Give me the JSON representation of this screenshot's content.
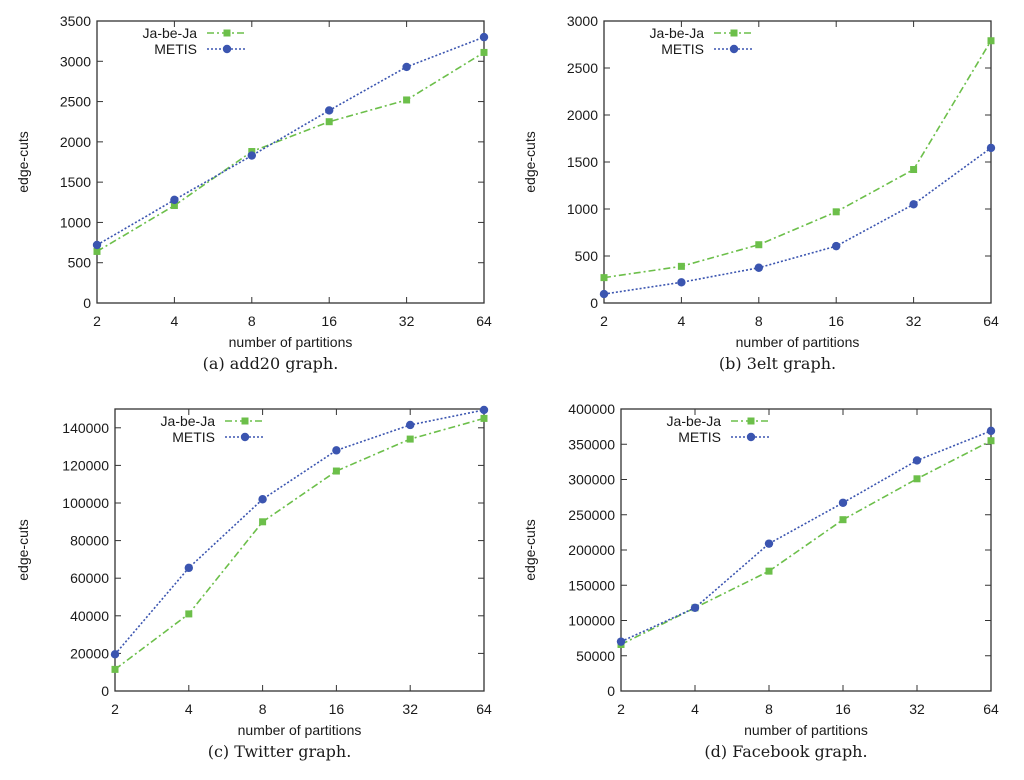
{
  "figure": {
    "colors": {
      "jabeja": "#6cbf4a",
      "metis": "#3b55b0",
      "axis": "#333333"
    }
  },
  "chart_data": [
    {
      "type": "line",
      "caption": "(a)  add20 graph.",
      "xlabel": "number of partitions",
      "ylabel": "edge-cuts",
      "x": [
        "2",
        "4",
        "8",
        "16",
        "32",
        "64"
      ],
      "ylim": [
        0,
        3500
      ],
      "yticks": [
        0,
        500,
        1000,
        1500,
        2000,
        2500,
        3000,
        3500
      ],
      "legend": "top-left",
      "grid": false,
      "series": [
        {
          "name": "Ja-be-Ja",
          "marker": "square",
          "values": [
            640,
            1210,
            1880,
            2250,
            2520,
            3110
          ]
        },
        {
          "name": "METIS",
          "marker": "circle",
          "values": [
            720,
            1280,
            1830,
            2390,
            2930,
            3300
          ]
        }
      ]
    },
    {
      "type": "line",
      "caption": "(b)  3elt graph.",
      "xlabel": "number of partitions",
      "ylabel": "edge-cuts",
      "x": [
        "2",
        "4",
        "8",
        "16",
        "32",
        "64"
      ],
      "ylim": [
        0,
        3000
      ],
      "yticks": [
        0,
        500,
        1000,
        1500,
        2000,
        2500,
        3000
      ],
      "legend": "top-left",
      "grid": false,
      "series": [
        {
          "name": "Ja-be-Ja",
          "marker": "square",
          "values": [
            270,
            390,
            620,
            970,
            1420,
            2790
          ]
        },
        {
          "name": "METIS",
          "marker": "circle",
          "values": [
            95,
            220,
            375,
            605,
            1050,
            1650
          ]
        }
      ]
    },
    {
      "type": "line",
      "caption": "(c)  Twitter graph.",
      "xlabel": "number of partitions",
      "ylabel": "edge-cuts",
      "x": [
        "2",
        "4",
        "8",
        "16",
        "32",
        "64"
      ],
      "ylim": [
        0,
        150000
      ],
      "yticks": [
        0,
        20000,
        40000,
        60000,
        80000,
        100000,
        120000,
        140000
      ],
      "legend": "top-left",
      "grid": false,
      "series": [
        {
          "name": "Ja-be-Ja",
          "marker": "square",
          "values": [
            11500,
            41000,
            90000,
            117000,
            134000,
            145000
          ]
        },
        {
          "name": "METIS",
          "marker": "circle",
          "values": [
            19500,
            65500,
            102000,
            128000,
            141500,
            149500
          ]
        }
      ]
    },
    {
      "type": "line",
      "caption": "(d)  Facebook graph.",
      "xlabel": "number of partitions",
      "ylabel": "edge-cuts",
      "x": [
        "2",
        "4",
        "8",
        "16",
        "32",
        "64"
      ],
      "ylim": [
        0,
        400000
      ],
      "yticks": [
        0,
        50000,
        100000,
        150000,
        200000,
        250000,
        300000,
        350000,
        400000
      ],
      "legend": "top-left",
      "grid": false,
      "series": [
        {
          "name": "Ja-be-Ja",
          "marker": "square",
          "values": [
            66000,
            118000,
            170000,
            243000,
            301000,
            355000
          ]
        },
        {
          "name": "METIS",
          "marker": "circle",
          "values": [
            70000,
            118000,
            209000,
            267000,
            327000,
            369000
          ]
        }
      ]
    }
  ]
}
